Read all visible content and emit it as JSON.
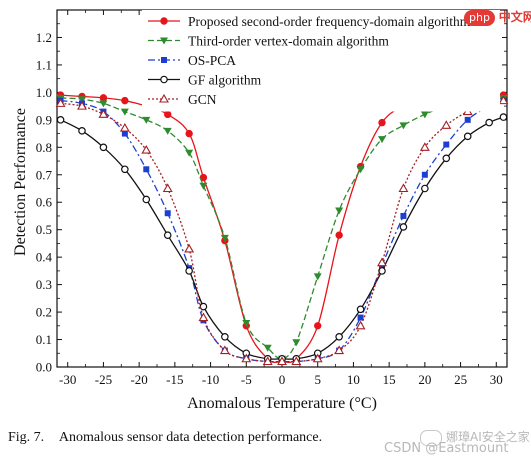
{
  "caption": {
    "fig_label": "Fig. 7.",
    "text": "Anomalous sensor data detection performance."
  },
  "watermark": {
    "line1": "娜璋AI安全之家",
    "line2": "CSDN @Eastmount"
  },
  "logo": {
    "badge": "php",
    "text": "中文网"
  },
  "chart_data": {
    "type": "line",
    "xlabel": "Anomalous Temperature (°C)",
    "ylabel": "Detection Performance",
    "xlim": [
      -31.5,
      31.5
    ],
    "ylim": [
      0.0,
      1.3
    ],
    "xticks": [
      -30,
      -25,
      -20,
      -15,
      -10,
      -5,
      0,
      5,
      10,
      15,
      20,
      25,
      30
    ],
    "yticks": [
      0.0,
      0.1,
      0.2,
      0.3,
      0.4,
      0.5,
      0.6,
      0.7,
      0.8,
      0.9,
      1.0,
      1.1,
      1.2
    ],
    "legend_position": "top-right",
    "grid": false,
    "series": [
      {
        "name": "Proposed second-order frequency-domain algorithm",
        "color": "#e8141b",
        "dash": "solid",
        "marker": "filled-circle",
        "x": [
          -31,
          -28,
          -25,
          -22,
          -19,
          -16,
          -13,
          -11,
          -8,
          -5,
          -2,
          0,
          2,
          5,
          8,
          11,
          14,
          17,
          20,
          23,
          26,
          29,
          31
        ],
        "y": [
          0.99,
          0.985,
          0.98,
          0.97,
          0.95,
          0.92,
          0.85,
          0.69,
          0.46,
          0.15,
          0.03,
          0.02,
          0.03,
          0.15,
          0.48,
          0.73,
          0.89,
          0.95,
          0.97,
          0.98,
          0.985,
          0.99,
          0.99
        ]
      },
      {
        "name": "Third-order vertex-domain algorithm",
        "color": "#2e8b2e",
        "dash": "6,3",
        "marker": "filled-triangle-down",
        "x": [
          -31,
          -28,
          -25,
          -22,
          -19,
          -16,
          -13,
          -11,
          -8,
          -5,
          -2,
          0,
          2,
          5,
          8,
          11,
          14,
          17,
          20,
          23,
          26,
          29,
          31
        ],
        "y": [
          0.98,
          0.975,
          0.96,
          0.93,
          0.9,
          0.86,
          0.78,
          0.66,
          0.47,
          0.16,
          0.07,
          0.03,
          0.09,
          0.33,
          0.57,
          0.72,
          0.83,
          0.88,
          0.92,
          0.95,
          0.965,
          0.975,
          0.98
        ]
      },
      {
        "name": "OS-PCA",
        "color": "#1c3fd1",
        "dash": "7,3,2,3",
        "marker": "filled-square",
        "x": [
          -31,
          -28,
          -25,
          -22,
          -19,
          -16,
          -13,
          -11,
          -8,
          -5,
          -2,
          0,
          2,
          5,
          8,
          11,
          14,
          17,
          20,
          23,
          26,
          29,
          31
        ],
        "y": [
          0.97,
          0.96,
          0.93,
          0.85,
          0.72,
          0.56,
          0.36,
          0.17,
          0.06,
          0.03,
          0.02,
          0.02,
          0.02,
          0.03,
          0.06,
          0.18,
          0.37,
          0.55,
          0.7,
          0.81,
          0.9,
          0.95,
          0.97
        ]
      },
      {
        "name": "GF algorithm",
        "color": "#111111",
        "dash": "solid",
        "marker": "open-circle",
        "x": [
          -31,
          -28,
          -25,
          -22,
          -19,
          -16,
          -13,
          -11,
          -8,
          -5,
          -2,
          0,
          2,
          5,
          8,
          11,
          14,
          17,
          20,
          23,
          26,
          29,
          31
        ],
        "y": [
          0.9,
          0.86,
          0.8,
          0.72,
          0.61,
          0.48,
          0.35,
          0.22,
          0.11,
          0.05,
          0.03,
          0.03,
          0.03,
          0.05,
          0.11,
          0.21,
          0.35,
          0.51,
          0.65,
          0.76,
          0.84,
          0.89,
          0.91
        ]
      },
      {
        "name": "GCN",
        "color": "#a31f24",
        "dash": "2,2",
        "marker": "open-triangle",
        "x": [
          -31,
          -28,
          -25,
          -22,
          -19,
          -16,
          -13,
          -11,
          -8,
          -5,
          -2,
          0,
          2,
          5,
          8,
          11,
          14,
          17,
          20,
          23,
          26,
          29,
          31
        ],
        "y": [
          0.96,
          0.95,
          0.92,
          0.87,
          0.79,
          0.65,
          0.43,
          0.18,
          0.06,
          0.03,
          0.02,
          0.02,
          0.02,
          0.03,
          0.06,
          0.15,
          0.38,
          0.65,
          0.8,
          0.88,
          0.93,
          0.96,
          0.97
        ]
      }
    ]
  }
}
